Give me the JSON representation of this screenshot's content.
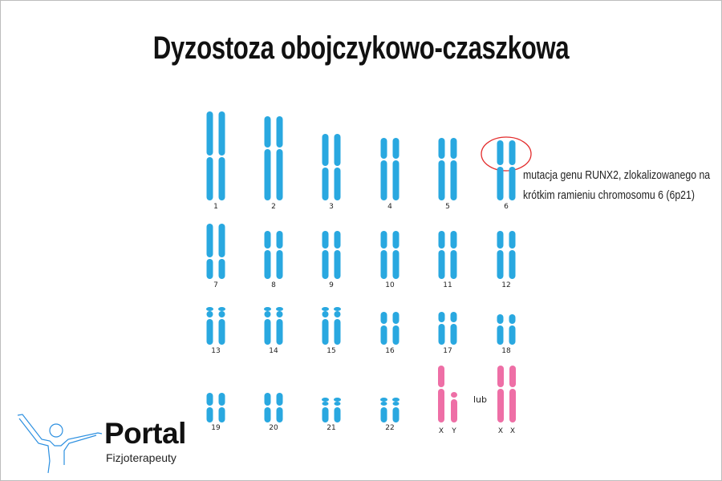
{
  "title": "Dyzostoza obojczykowo-czaszkowa",
  "annotation": {
    "line1": "mutacja genu RUNX2, zlokalizowanego na",
    "line2": "krótkim ramieniu chromosomu 6 (6p21)",
    "highlight_color": "#e32b2b"
  },
  "chromosome_labels": [
    "1",
    "2",
    "3",
    "4",
    "5",
    "6",
    "7",
    "8",
    "9",
    "10",
    "11",
    "12",
    "13",
    "14",
    "15",
    "16",
    "17",
    "18",
    "19",
    "20",
    "21",
    "22"
  ],
  "sex_chromosomes": {
    "male_labels": [
      "X",
      "Y"
    ],
    "or_label": "lub",
    "female_labels": [
      "X",
      "X"
    ]
  },
  "colors": {
    "autosome": "#29a8e0",
    "sex": "#ee6fa6"
  },
  "logo": {
    "name": "Portal",
    "subtitle": "Fizjoterapeuty",
    "icon": "person-arms-raised-icon"
  }
}
